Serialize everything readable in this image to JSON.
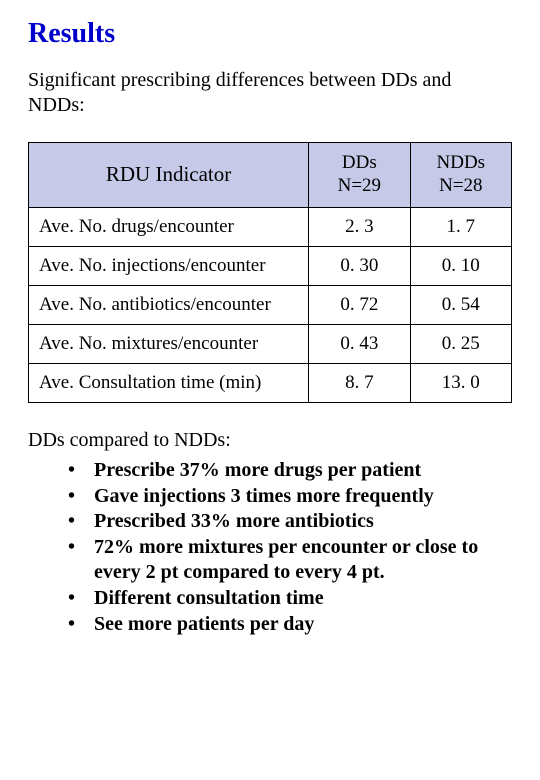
{
  "title": "Results",
  "intro": "Significant prescribing differences between DDs and NDDs:",
  "table": {
    "header_fill": "#c6c9e8",
    "border_color": "#000000",
    "columns": [
      {
        "label": "RDU Indicator"
      },
      {
        "label_line1": "DDs",
        "label_line2": "N=29"
      },
      {
        "label_line1": "NDDs",
        "label_line2": "N=28"
      }
    ],
    "rows": [
      {
        "indicator": "Ave. No. drugs/encounter",
        "dds": "2. 3",
        "ndds": "1. 7"
      },
      {
        "indicator": "Ave. No. injections/encounter",
        "dds": "0. 30",
        "ndds": "0. 10"
      },
      {
        "indicator": "Ave. No. antibiotics/encounter",
        "dds": "0. 72",
        "ndds": "0. 54"
      },
      {
        "indicator": "Ave. No. mixtures/encounter",
        "dds": "0. 43",
        "ndds": "0. 25"
      },
      {
        "indicator": "Ave. Consultation time (min)",
        "dds": "8. 7",
        "ndds": "13. 0"
      }
    ]
  },
  "subhead": "DDs compared to NDDs:",
  "bullets": [
    "Prescribe 37% more drugs per patient",
    "Gave injections 3 times more frequently",
    "Prescribed 33% more antibiotics",
    "72% more mixtures per encounter or close to every 2 pt compared to every 4 pt.",
    "Different consultation time",
    "See more patients per day"
  ]
}
